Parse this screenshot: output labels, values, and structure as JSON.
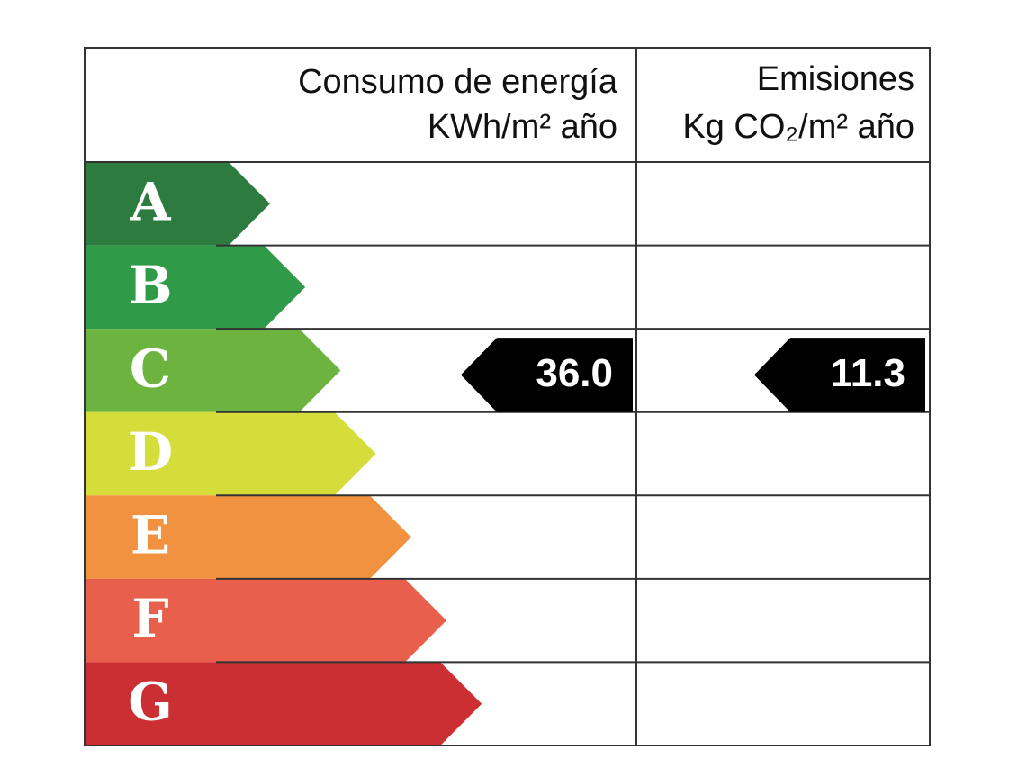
{
  "header": {
    "energy": [
      "Consumo de energía",
      "KWh/m² año"
    ],
    "emissions": [
      "Emisiones",
      "Kg CO₂/m² año"
    ]
  },
  "classes": [
    {
      "letter": "A",
      "color": "#2e7b3f"
    },
    {
      "letter": "B",
      "color": "#2f9a47"
    },
    {
      "letter": "C",
      "color": "#6cb33f"
    },
    {
      "letter": "D",
      "color": "#d5dd3b"
    },
    {
      "letter": "E",
      "color": "#f19241"
    },
    {
      "letter": "F",
      "color": "#e8604b"
    },
    {
      "letter": "G",
      "color": "#cb2f33"
    }
  ],
  "energy_rating": {
    "class": "C",
    "value": "36.0"
  },
  "emissions_rating": {
    "class": "C",
    "value": "11.3"
  }
}
